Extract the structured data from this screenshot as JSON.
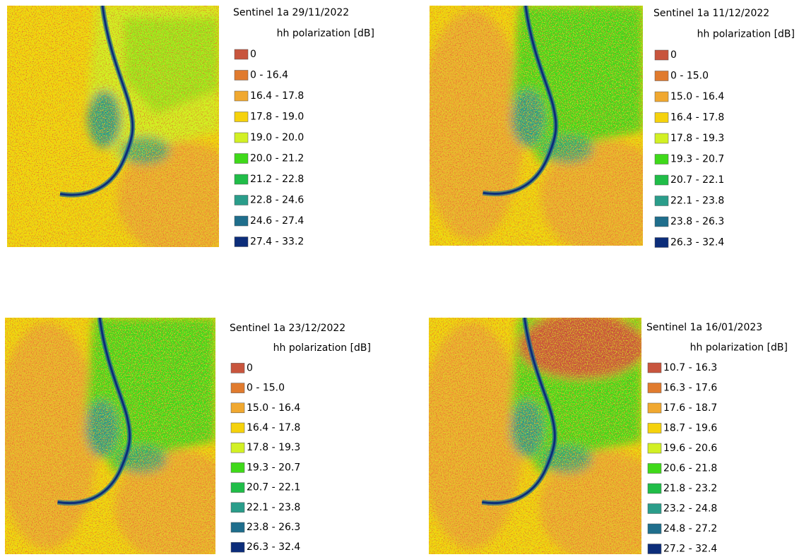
{
  "panels": [
    {
      "title": "Sentinel 1a 29/11/2022",
      "subtitle": "hh polarization [dB]",
      "legend": [
        {
          "label": "0",
          "color": "#c8553d"
        },
        {
          "label": "0 - 16.4",
          "color": "#e07b2e"
        },
        {
          "label": "16.4 - 17.8",
          "color": "#f0a830"
        },
        {
          "label": "17.8 - 19.0",
          "color": "#f5d20c"
        },
        {
          "label": "19.0 - 20.0",
          "color": "#d2f024"
        },
        {
          "label": "20.0 - 21.2",
          "color": "#3fd91a"
        },
        {
          "label": "21.2 - 22.8",
          "color": "#20bd48"
        },
        {
          "label": "22.8 - 24.6",
          "color": "#2a9d8a"
        },
        {
          "label": "24.6 - 27.4",
          "color": "#1f6e8c"
        },
        {
          "label": "27.4 - 33.2",
          "color": "#0c2d7a"
        }
      ]
    },
    {
      "title": "Sentinel 1a 11/12/2022",
      "subtitle": "hh polarization [dB]",
      "legend": [
        {
          "label": "0",
          "color": "#c8553d"
        },
        {
          "label": "0 - 15.0",
          "color": "#e07b2e"
        },
        {
          "label": "15.0 - 16.4",
          "color": "#f0a830"
        },
        {
          "label": "16.4 - 17.8",
          "color": "#f5d20c"
        },
        {
          "label": "17.8 - 19.3",
          "color": "#d2f024"
        },
        {
          "label": "19.3 - 20.7",
          "color": "#3fd91a"
        },
        {
          "label": "20.7 - 22.1",
          "color": "#20bd48"
        },
        {
          "label": "22.1 - 23.8",
          "color": "#2a9d8a"
        },
        {
          "label": "23.8 - 26.3",
          "color": "#1f6e8c"
        },
        {
          "label": "26.3 - 32.4",
          "color": "#0c2d7a"
        }
      ]
    },
    {
      "title": "Sentinel 1a 23/12/2022",
      "subtitle": "hh polarization [dB]",
      "legend": [
        {
          "label": "0",
          "color": "#c8553d"
        },
        {
          "label": "0 - 15.0",
          "color": "#e07b2e"
        },
        {
          "label": "15.0 - 16.4",
          "color": "#f0a830"
        },
        {
          "label": "16.4 - 17.8",
          "color": "#f5d20c"
        },
        {
          "label": "17.8 - 19.3",
          "color": "#d2f024"
        },
        {
          "label": "19.3 - 20.7",
          "color": "#3fd91a"
        },
        {
          "label": "20.7 - 22.1",
          "color": "#20bd48"
        },
        {
          "label": "22.1 - 23.8",
          "color": "#2a9d8a"
        },
        {
          "label": "23.8 - 26.3",
          "color": "#1f6e8c"
        },
        {
          "label": "26.3 - 32.4",
          "color": "#0c2d7a"
        }
      ]
    },
    {
      "title": "Sentinel 1a 16/01/2023",
      "subtitle": "hh polarization [dB]",
      "legend": [
        {
          "label": "10.7 - 16.3",
          "color": "#c8553d"
        },
        {
          "label": "16.3 - 17.6",
          "color": "#e07b2e"
        },
        {
          "label": "17.6 - 18.7",
          "color": "#f0a830"
        },
        {
          "label": "18.7 - 19.6",
          "color": "#f5d20c"
        },
        {
          "label": "19.6 - 20.6",
          "color": "#d2f024"
        },
        {
          "label": "20.6 - 21.8",
          "color": "#3fd91a"
        },
        {
          "label": "21.8 - 23.2",
          "color": "#20bd48"
        },
        {
          "label": "23.2 - 24.8",
          "color": "#2a9d8a"
        },
        {
          "label": "24.8 - 27.2",
          "color": "#1f6e8c"
        },
        {
          "label": "27.2 - 32.4",
          "color": "#0c2d7a"
        }
      ]
    }
  ]
}
